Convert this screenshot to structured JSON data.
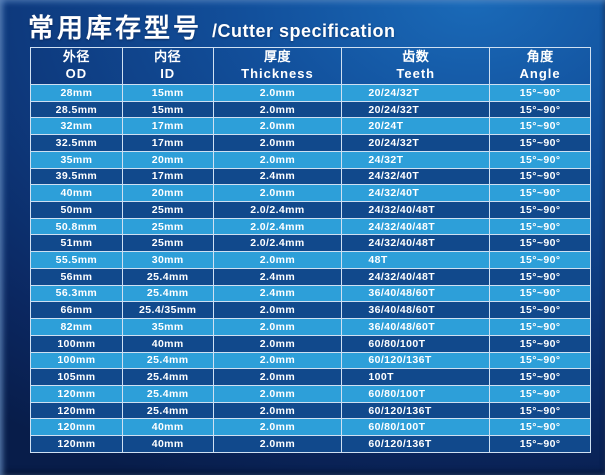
{
  "title": {
    "cn": "常用库存型号",
    "en": "/Cutter specification"
  },
  "table": {
    "columns": [
      {
        "cn": "外径",
        "en": "OD"
      },
      {
        "cn": "内径",
        "en": "ID"
      },
      {
        "cn": "厚度",
        "en": "Thickness"
      },
      {
        "cn": "齿数",
        "en": "Teeth"
      },
      {
        "cn": "角度",
        "en": "Angle"
      }
    ],
    "rows": [
      [
        "28mm",
        "15mm",
        "2.0mm",
        "20/24/32T",
        "15°~90°"
      ],
      [
        "28.5mm",
        "15mm",
        "2.0mm",
        "20/24/32T",
        "15°~90°"
      ],
      [
        "32mm",
        "17mm",
        "2.0mm",
        "20/24T",
        "15°~90°"
      ],
      [
        "32.5mm",
        "17mm",
        "2.0mm",
        "20/24/32T",
        "15°~90°"
      ],
      [
        "35mm",
        "20mm",
        "2.0mm",
        "24/32T",
        "15°~90°"
      ],
      [
        "39.5mm",
        "17mm",
        "2.4mm",
        "24/32/40T",
        "15°~90°"
      ],
      [
        "40mm",
        "20mm",
        "2.0mm",
        "24/32/40T",
        "15°~90°"
      ],
      [
        "50mm",
        "25mm",
        "2.0/2.4mm",
        "24/32/40/48T",
        "15°~90°"
      ],
      [
        "50.8mm",
        "25mm",
        "2.0/2.4mm",
        "24/32/40/48T",
        "15°~90°"
      ],
      [
        "51mm",
        "25mm",
        "2.0/2.4mm",
        "24/32/40/48T",
        "15°~90°"
      ],
      [
        "55.5mm",
        "30mm",
        "2.0mm",
        "48T",
        "15°~90°"
      ],
      [
        "56mm",
        "25.4mm",
        "2.4mm",
        "24/32/40/48T",
        "15°~90°"
      ],
      [
        "56.3mm",
        "25.4mm",
        "2.4mm",
        "36/40/48/60T",
        "15°~90°"
      ],
      [
        "66mm",
        "25.4/35mm",
        "2.0mm",
        "36/40/48/60T",
        "15°~90°"
      ],
      [
        "82mm",
        "35mm",
        "2.0mm",
        "36/40/48/60T",
        "15°~90°"
      ],
      [
        "100mm",
        "40mm",
        "2.0mm",
        "60/80/100T",
        "15°~90°"
      ],
      [
        "100mm",
        "25.4mm",
        "2.0mm",
        "60/120/136T",
        "15°~90°"
      ],
      [
        "105mm",
        "25.4mm",
        "2.0mm",
        "100T",
        "15°~90°"
      ],
      [
        "120mm",
        "25.4mm",
        "2.0mm",
        "60/80/100T",
        "15°~90°"
      ],
      [
        "120mm",
        "25.4mm",
        "2.0mm",
        "60/120/136T",
        "15°~90°"
      ],
      [
        "120mm",
        "40mm",
        "2.0mm",
        "60/80/100T",
        "15°~90°"
      ],
      [
        "120mm",
        "40mm",
        "2.0mm",
        "60/120/136T",
        "15°~90°"
      ]
    ]
  },
  "colors": {
    "row_light": "#2d9fd9",
    "row_dark": "#11498c",
    "background_top": "#1a6ab8",
    "background_bottom": "#081d4a",
    "border": "#cfe0f2",
    "text": "#ffffff"
  }
}
